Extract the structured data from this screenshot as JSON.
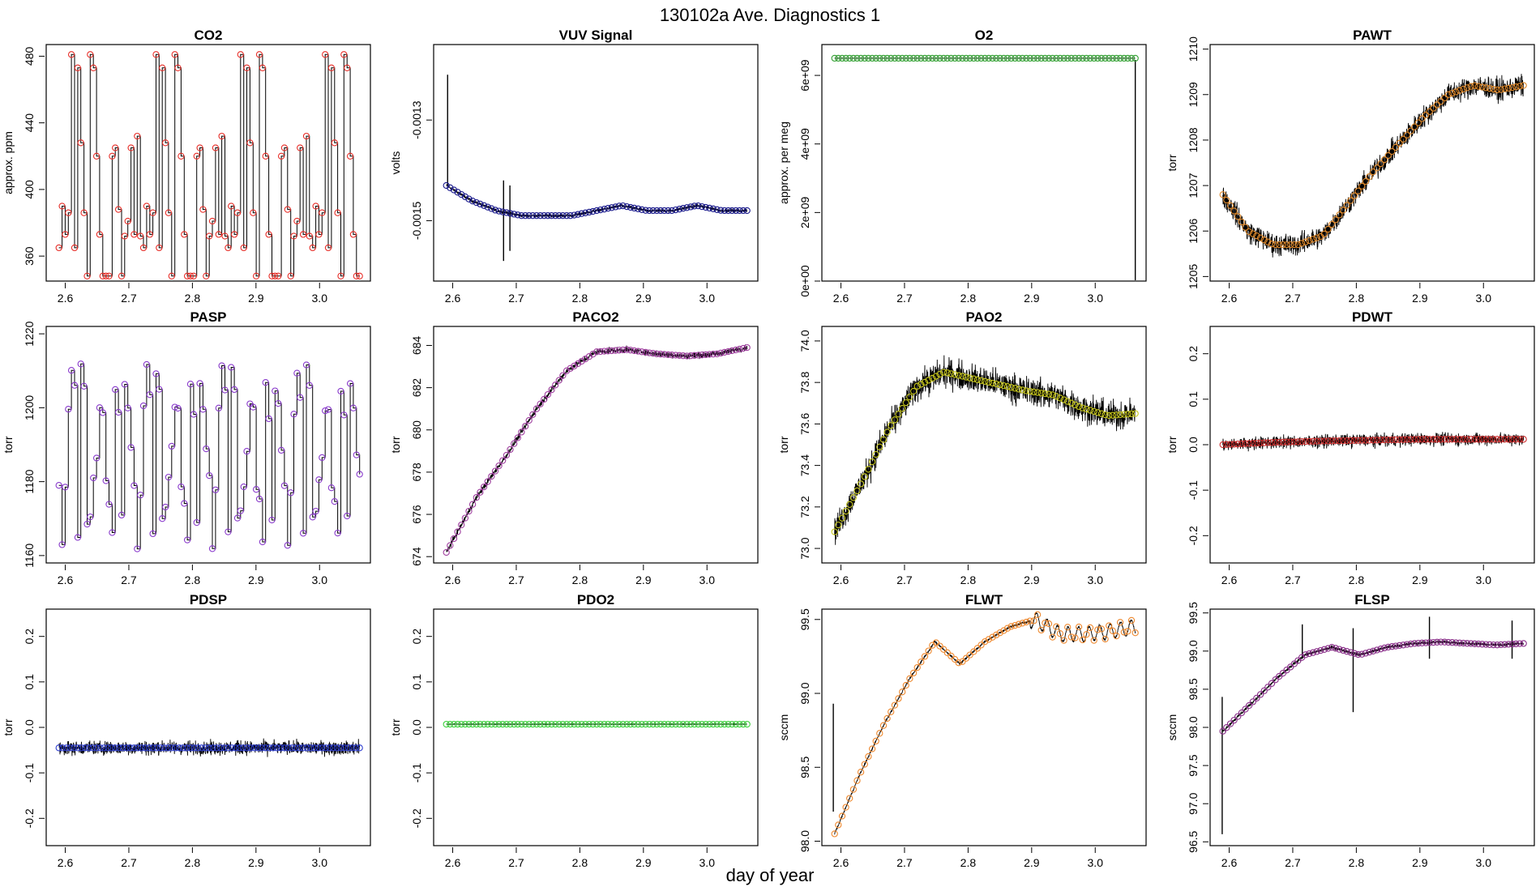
{
  "figure": {
    "title": "130102a   Ave. Diagnostics 1",
    "xlabel": "day of year"
  },
  "chart_data": [
    {
      "type": "line",
      "title": "CO2",
      "ylabel": "approx. ppm",
      "xlim": [
        2.57,
        3.08
      ],
      "ylim": [
        345,
        487
      ],
      "xticks": [
        2.6,
        2.7,
        2.8,
        2.9,
        3.0
      ],
      "xtick_labels": [
        "2.6",
        "2.7",
        "2.8",
        "2.9",
        "3.0"
      ],
      "yticks": [
        360,
        400,
        440,
        480
      ],
      "ytick_labels": [
        "360",
        "400",
        "440",
        "480"
      ],
      "marker_color": "#e8302a",
      "pattern": "co2",
      "base": [
        365,
        481,
        348,
        432,
        386,
        373,
        425,
        390,
        473,
        348,
        372,
        481,
        348,
        388,
        373,
        428,
        420,
        381
      ],
      "noise": 0,
      "spikes": []
    },
    {
      "type": "line",
      "title": "VUV Signal",
      "ylabel": "volts",
      "xlim": [
        2.57,
        3.08
      ],
      "ylim": [
        -0.00162,
        -0.00115
      ],
      "xticks": [
        2.6,
        2.7,
        2.8,
        2.9,
        3.0
      ],
      "xtick_labels": [
        "2.6",
        "2.7",
        "2.8",
        "2.9",
        "3.0"
      ],
      "yticks": [
        -0.0015,
        -0.0013
      ],
      "ytick_labels": [
        "-0.0015",
        "-0.0013"
      ],
      "marker_color": "#1a1a8c",
      "pattern": "trend",
      "base": [
        -0.00143,
        -0.00146,
        -0.00148,
        -0.00149,
        -0.00149,
        -0.00149,
        -0.00148,
        -0.00147,
        -0.00148,
        -0.00148,
        -0.00147,
        -0.00148,
        -0.00148
      ],
      "noise": 4e-06,
      "spikes": [
        {
          "x": 2.592,
          "hi": -0.00121,
          "lo": -0.00143
        },
        {
          "x": 2.68,
          "hi": -0.00142,
          "lo": -0.00158
        },
        {
          "x": 2.69,
          "hi": -0.00143,
          "lo": -0.00156
        }
      ]
    },
    {
      "type": "line",
      "title": "O2",
      "ylabel": "approx. per meg",
      "xlim": [
        2.57,
        3.08
      ],
      "ylim": [
        0,
        6900000000.0
      ],
      "xticks": [
        2.6,
        2.7,
        2.8,
        2.9,
        3.0
      ],
      "xtick_labels": [
        "2.6",
        "2.7",
        "2.8",
        "2.9",
        "3.0"
      ],
      "yticks": [
        0,
        2000000000.0,
        4000000000.0,
        6000000000.0
      ],
      "ytick_labels": [
        "0e+00",
        "2e+09",
        "4e+09",
        "6e+09"
      ],
      "marker_color": "#33a033",
      "pattern": "trend",
      "base": [
        6500000000.0,
        6500000000.0,
        6500000000.0,
        6500000000.0,
        6500000000.0,
        6500000000.0
      ],
      "noise": 0,
      "spikes": [
        {
          "x": 3.063,
          "hi": 6450000000.0,
          "lo": 0
        }
      ]
    },
    {
      "type": "line",
      "title": "PAWT",
      "ylabel": "torr",
      "xlim": [
        2.57,
        3.08
      ],
      "ylim": [
        1204.9,
        1210.1
      ],
      "xticks": [
        2.6,
        2.7,
        2.8,
        2.9,
        3.0
      ],
      "xtick_labels": [
        "2.6",
        "2.7",
        "2.8",
        "2.9",
        "3.0"
      ],
      "yticks": [
        1205,
        1206,
        1207,
        1208,
        1209,
        1210
      ],
      "ytick_labels": [
        "1205",
        "1206",
        "1207",
        "1208",
        "1209",
        "1210"
      ],
      "marker_color": "#e08a2c",
      "pattern": "trend",
      "base": [
        1206.8,
        1206.0,
        1205.7,
        1205.7,
        1205.9,
        1206.6,
        1207.3,
        1207.9,
        1208.5,
        1209.0,
        1209.2,
        1209.1,
        1209.2
      ],
      "noise": 0.35,
      "spikes": []
    },
    {
      "type": "line",
      "title": "PASP",
      "ylabel": "torr",
      "xlim": [
        2.57,
        3.08
      ],
      "ylim": [
        1158,
        1222
      ],
      "xticks": [
        2.6,
        2.7,
        2.8,
        2.9,
        3.0
      ],
      "xtick_labels": [
        "2.6",
        "2.7",
        "2.8",
        "2.9",
        "3.0"
      ],
      "yticks": [
        1160,
        1180,
        1200,
        1220
      ],
      "ytick_labels": [
        "1160",
        "1180",
        "1200",
        "1220"
      ],
      "marker_color": "#8a3ccc",
      "pattern": "pasp",
      "base": [
        1180,
        1200,
        1170,
        1210,
        1205,
        1175,
        1200,
        1162,
        1188,
        1172,
        1206,
        1198,
        1165,
        1210,
        1178,
        1200
      ],
      "noise": 0,
      "spikes": []
    },
    {
      "type": "line",
      "title": "PACO2",
      "ylabel": "torr",
      "xlim": [
        2.57,
        3.08
      ],
      "ylim": [
        673.7,
        684.9
      ],
      "xticks": [
        2.6,
        2.7,
        2.8,
        2.9,
        3.0
      ],
      "xtick_labels": [
        "2.6",
        "2.7",
        "2.8",
        "2.9",
        "3.0"
      ],
      "yticks": [
        674,
        676,
        678,
        680,
        682,
        684
      ],
      "ytick_labels": [
        "674",
        "676",
        "678",
        "680",
        "682",
        "684"
      ],
      "marker_color": "#a040a0",
      "pattern": "trend",
      "base": [
        674.2,
        676.8,
        678.8,
        681.0,
        682.8,
        683.7,
        683.8,
        683.6,
        683.5,
        683.6,
        683.9
      ],
      "noise": 0.2,
      "spikes": []
    },
    {
      "type": "line",
      "title": "PAO2",
      "ylabel": "torr",
      "xlim": [
        2.57,
        3.08
      ],
      "ylim": [
        72.93,
        74.07
      ],
      "xticks": [
        2.6,
        2.7,
        2.8,
        2.9,
        3.0
      ],
      "xtick_labels": [
        "2.6",
        "2.7",
        "2.8",
        "2.9",
        "3.0"
      ],
      "yticks": [
        73.0,
        73.2,
        73.4,
        73.6,
        73.8,
        74.0
      ],
      "ytick_labels": [
        "73.0",
        "73.2",
        "73.4",
        "73.6",
        "73.8",
        "74.0"
      ],
      "marker_color": "#c8c81e",
      "pattern": "trend",
      "base": [
        73.08,
        73.32,
        73.58,
        73.78,
        73.85,
        73.82,
        73.79,
        73.76,
        73.74,
        73.68,
        73.64,
        73.65
      ],
      "noise": 0.1,
      "spikes": []
    },
    {
      "type": "line",
      "title": "PDWT",
      "ylabel": "torr",
      "xlim": [
        2.57,
        3.08
      ],
      "ylim": [
        -0.26,
        0.26
      ],
      "xticks": [
        2.6,
        2.7,
        2.8,
        2.9,
        3.0
      ],
      "xtick_labels": [
        "2.6",
        "2.7",
        "2.8",
        "2.9",
        "3.0"
      ],
      "yticks": [
        -0.2,
        -0.1,
        0.0,
        0.1,
        0.2
      ],
      "ytick_labels": [
        "-0.2",
        "-0.1",
        "0.0",
        "0.1",
        "0.2"
      ],
      "marker_color": "#d03030",
      "pattern": "trend",
      "base": [
        0.0,
        0.005,
        0.008,
        0.01,
        0.012,
        0.012,
        0.012
      ],
      "noise": 0.02,
      "spikes": []
    },
    {
      "type": "line",
      "title": "PDSP",
      "ylabel": "torr",
      "xlim": [
        2.57,
        3.08
      ],
      "ylim": [
        -0.26,
        0.26
      ],
      "xticks": [
        2.6,
        2.7,
        2.8,
        2.9,
        3.0
      ],
      "xtick_labels": [
        "2.6",
        "2.7",
        "2.8",
        "2.9",
        "3.0"
      ],
      "yticks": [
        -0.2,
        -0.1,
        0.0,
        0.1,
        0.2
      ],
      "ytick_labels": [
        "-0.2",
        "-0.1",
        "0.0",
        "0.1",
        "0.2"
      ],
      "marker_color": "#2f3fd0",
      "pattern": "trend",
      "base": [
        -0.045,
        -0.045,
        -0.045,
        -0.045,
        -0.045
      ],
      "noise": 0.022,
      "spikes": []
    },
    {
      "type": "line",
      "title": "PDO2",
      "ylabel": "torr",
      "xlim": [
        2.57,
        3.08
      ],
      "ylim": [
        -0.26,
        0.26
      ],
      "xticks": [
        2.6,
        2.7,
        2.8,
        2.9,
        3.0
      ],
      "xtick_labels": [
        "2.6",
        "2.7",
        "2.8",
        "2.9",
        "3.0"
      ],
      "yticks": [
        -0.2,
        -0.1,
        0.0,
        0.1,
        0.2
      ],
      "ytick_labels": [
        "-0.2",
        "-0.1",
        "0.0",
        "0.1",
        "0.2"
      ],
      "marker_color": "#3ad03a",
      "pattern": "trend",
      "base": [
        0.007,
        0.007,
        0.007,
        0.007,
        0.007
      ],
      "noise": 0.001,
      "spikes": []
    },
    {
      "type": "line",
      "title": "FLWT",
      "ylabel": "sccm",
      "xlim": [
        2.57,
        3.08
      ],
      "ylim": [
        97.97,
        99.57
      ],
      "xticks": [
        2.6,
        2.7,
        2.8,
        2.9,
        3.0
      ],
      "xtick_labels": [
        "2.6",
        "2.7",
        "2.8",
        "2.9",
        "3.0"
      ],
      "yticks": [
        98.0,
        98.5,
        99.0,
        99.5
      ],
      "ytick_labels": [
        "98.0",
        "98.5",
        "99.0",
        "99.5"
      ],
      "marker_color": "#f08a30",
      "pattern": "flwt",
      "base": [
        98.05,
        98.45,
        98.8,
        99.1,
        99.35,
        99.2,
        99.35,
        99.45,
        99.5,
        99.4,
        99.4,
        99.42,
        99.45
      ],
      "noise": 0.01,
      "spikes": [
        {
          "x": 2.588,
          "hi": 98.93,
          "lo": 98.2
        }
      ]
    },
    {
      "type": "line",
      "title": "FLSP",
      "ylabel": "sccm",
      "xlim": [
        2.57,
        3.08
      ],
      "ylim": [
        96.45,
        99.55
      ],
      "xticks": [
        2.6,
        2.7,
        2.8,
        2.9,
        3.0
      ],
      "xtick_labels": [
        "2.6",
        "2.7",
        "2.8",
        "2.9",
        "3.0"
      ],
      "yticks": [
        96.5,
        97.0,
        97.5,
        98.0,
        98.5,
        99.0,
        99.5
      ],
      "ytick_labels": [
        "96.5",
        "97.0",
        "97.5",
        "98.0",
        "98.5",
        "99.0",
        "99.5"
      ],
      "marker_color": "#8a2f8a",
      "pattern": "trend",
      "base": [
        97.95,
        98.3,
        98.65,
        98.95,
        99.05,
        98.95,
        99.05,
        99.1,
        99.12,
        99.1,
        99.08,
        99.1
      ],
      "noise": 0.03,
      "spikes": [
        {
          "x": 2.589,
          "hi": 98.4,
          "lo": 96.6
        },
        {
          "x": 2.715,
          "hi": 99.35,
          "lo": 98.9
        },
        {
          "x": 2.795,
          "hi": 99.3,
          "lo": 98.2
        },
        {
          "x": 2.915,
          "hi": 99.45,
          "lo": 98.9
        },
        {
          "x": 3.045,
          "hi": 99.4,
          "lo": 98.9
        }
      ]
    }
  ]
}
